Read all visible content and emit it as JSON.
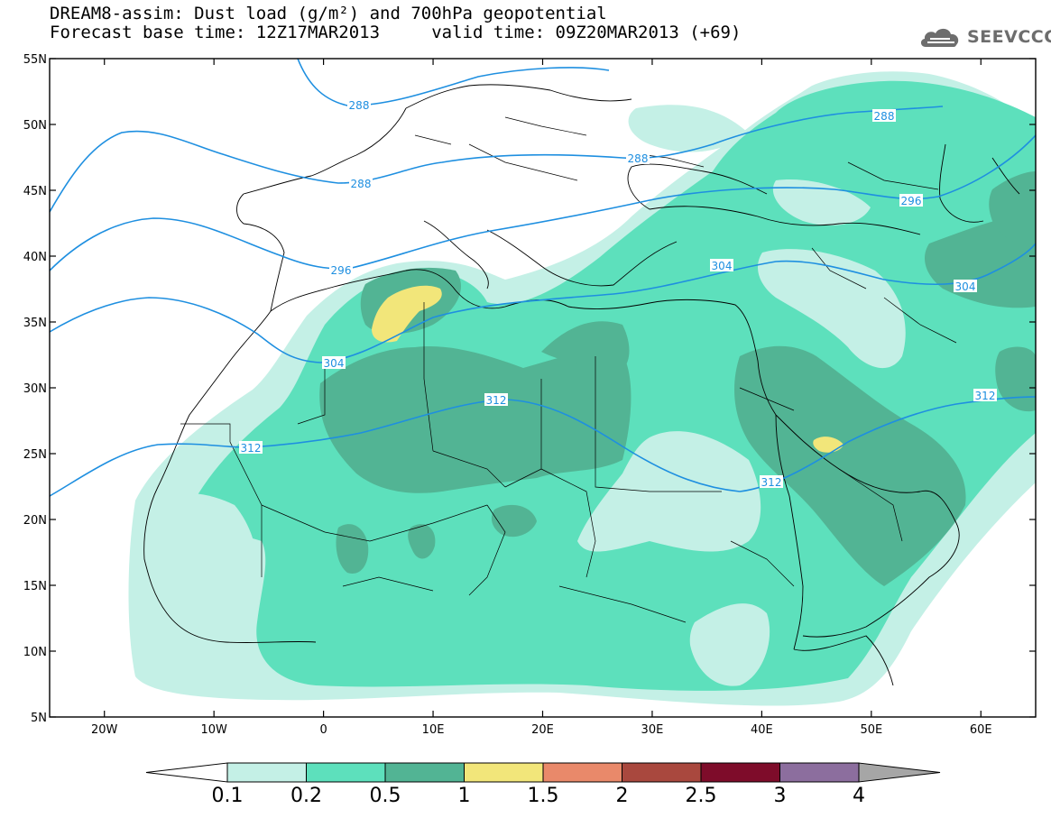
{
  "title": {
    "line1": "DREAM8-assim: Dust load (g/m²) and 700hPa geopotential",
    "line2": "Forecast base time: 12Z17MAR2013     valid time: 09Z20MAR2013 (+69)"
  },
  "logo": {
    "text": "SEEVCCC",
    "icon": "cloud-icon",
    "color": "#6d6d6d"
  },
  "map": {
    "lon_range": [
      -25,
      65
    ],
    "lat_range": [
      5,
      55
    ],
    "lat_ticks": [
      "55N",
      "50N",
      "45N",
      "40N",
      "35N",
      "30N",
      "25N",
      "20N",
      "15N",
      "10N",
      "5N"
    ],
    "lon_ticks": [
      "20W",
      "10W",
      "0",
      "10E",
      "20E",
      "30E",
      "40E",
      "50E",
      "60E"
    ],
    "contour_color": "#1e8fe0",
    "contour_labels": [
      "288",
      "288",
      "288",
      "288",
      "296",
      "296",
      "304",
      "304",
      "304",
      "312",
      "312",
      "312",
      "312"
    ]
  },
  "colorbar": {
    "labels": [
      "0.1",
      "0.2",
      "0.5",
      "1",
      "1.5",
      "2",
      "2.5",
      "3",
      "4"
    ],
    "colors": [
      "#c4f0e6",
      "#5de0bc",
      "#52b494",
      "#f2e67a",
      "#e9896a",
      "#a9483e",
      "#7e0c2a",
      "#8c6e9e"
    ],
    "under_color": "#ffffff",
    "over_color": "#a6a6a6"
  },
  "legend_colors": {
    "light": "#c4f0e6",
    "mid": "#5de0bc",
    "dark": "#52b494",
    "yellow": "#f2e67a"
  }
}
